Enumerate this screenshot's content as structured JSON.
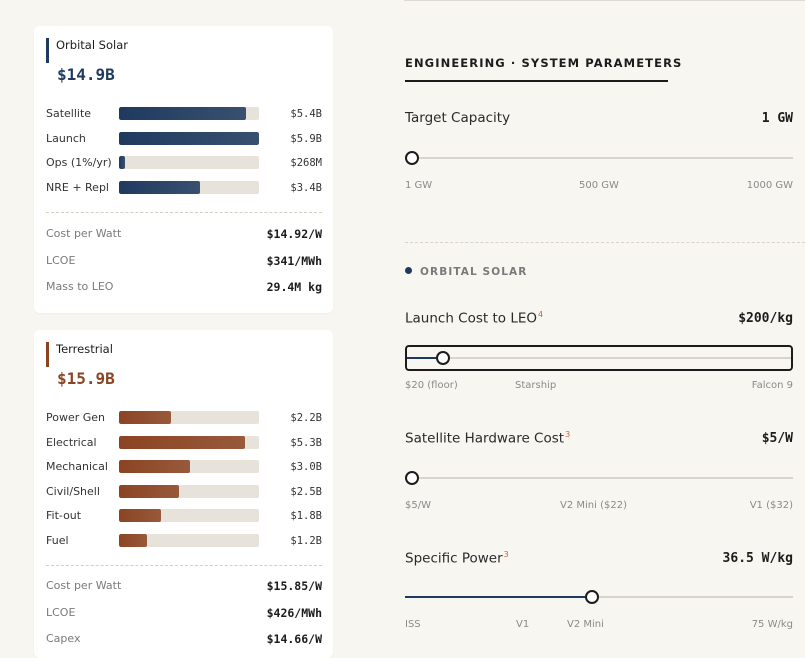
{
  "orbital": {
    "title": "Orbital Solar",
    "total": "$14.9B",
    "accent": "#1e3a5f",
    "rows": [
      {
        "label": "Satellite",
        "value": "$5.4B",
        "fraction": 0.91
      },
      {
        "label": "Launch",
        "value": "$5.9B",
        "fraction": 1.0
      },
      {
        "label": "Ops (1%/yr)",
        "value": "$268M",
        "fraction": 0.04
      },
      {
        "label": "NRE + Repl",
        "value": "$3.4B",
        "fraction": 0.58
      }
    ],
    "metrics": [
      {
        "label": "Cost per Watt",
        "value": "$14.92/W"
      },
      {
        "label": "LCOE",
        "value": "$341/MWh"
      },
      {
        "label": "Mass to LEO",
        "value": "29.4M kg"
      }
    ]
  },
  "terrestrial": {
    "title": "Terrestrial",
    "total": "$15.9B",
    "accent": "#8b4423",
    "rows": [
      {
        "label": "Power Gen",
        "value": "$2.2B",
        "fraction": 0.37
      },
      {
        "label": "Electrical",
        "value": "$5.3B",
        "fraction": 0.9
      },
      {
        "label": "Mechanical",
        "value": "$3.0B",
        "fraction": 0.51
      },
      {
        "label": "Civil/Shell",
        "value": "$2.5B",
        "fraction": 0.43
      },
      {
        "label": "Fit-out",
        "value": "$1.8B",
        "fraction": 0.3
      },
      {
        "label": "Fuel",
        "value": "$1.2B",
        "fraction": 0.2
      }
    ],
    "metrics": [
      {
        "label": "Cost per Watt",
        "value": "$15.85/W"
      },
      {
        "label": "LCOE",
        "value": "$426/MWh"
      },
      {
        "label": "Capex",
        "value": "$14.66/W"
      }
    ]
  },
  "panel": {
    "section_title": "ENGINEERING · SYSTEM PARAMETERS",
    "subsection_title": "ORBITAL SOLAR",
    "target_capacity": {
      "label": "Target Capacity",
      "value": "1 GW",
      "fraction": 0.0,
      "ticks": [
        "1 GW",
        "500 GW",
        "1000 GW"
      ]
    },
    "launch_cost": {
      "label": "Launch Cost to LEO",
      "footnote": "4",
      "value": "$200/kg",
      "fraction": 0.075,
      "ticks": [
        "$20 (floor)",
        "Starship",
        "Falcon 9"
      ]
    },
    "sat_hardware": {
      "label": "Satellite Hardware Cost",
      "footnote": "3",
      "value": "$5/W",
      "fraction": 0.0,
      "ticks": [
        "$5/W",
        "V2 Mini ($22)",
        "V1 ($32)"
      ]
    },
    "specific_power": {
      "label": "Specific Power",
      "footnote": "3",
      "value": "36.5 W/kg",
      "fraction": 0.465,
      "ticks": [
        "ISS",
        "V1",
        "V2 Mini",
        "75 W/kg"
      ]
    }
  },
  "colors": {
    "orbital_fill": "#1e3a5f",
    "terrestrial_fill": "#8b4423"
  }
}
